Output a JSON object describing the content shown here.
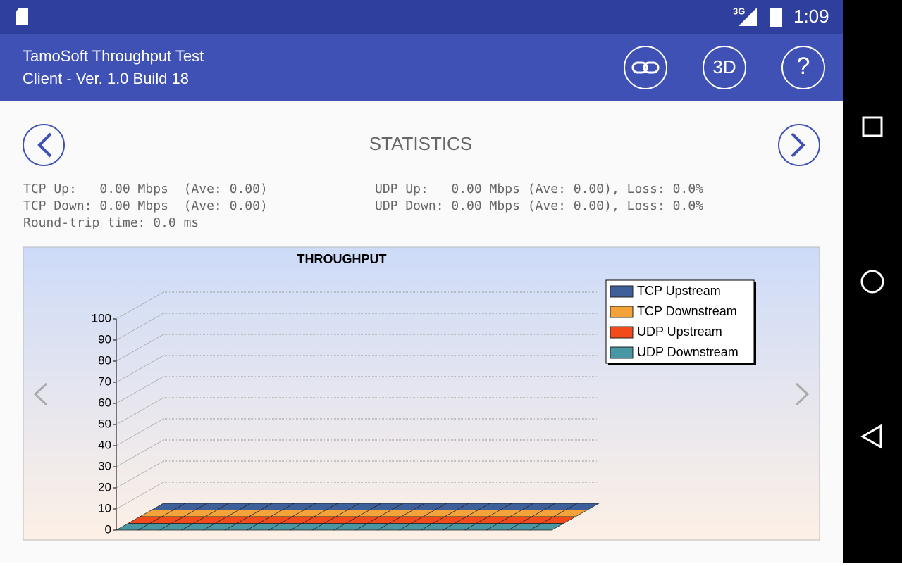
{
  "status_bar": {
    "network": "3G",
    "time": "1:09"
  },
  "app_bar": {
    "title": "TamoSoft Throughput Test",
    "subtitle": "Client - Ver. 1.0 Build 18",
    "buttons": [
      "3D",
      "?"
    ]
  },
  "page_title": "STATISTICS",
  "stats": {
    "left": [
      "TCP Up:   0.00 Mbps  (Ave: 0.00)",
      "TCP Down: 0.00 Mbps  (Ave: 0.00)",
      "Round-trip time: 0.0 ms"
    ],
    "right": [
      "UDP Up:   0.00 Mbps (Ave: 0.00), Loss: 0.0%",
      "UDP Down: 0.00 Mbps (Ave: 0.00), Loss: 0.0%"
    ]
  },
  "chart_data": {
    "type": "bar3d",
    "title": "THROUGHPUT",
    "categories": [
      null,
      null,
      null,
      null,
      null,
      null,
      null,
      null,
      null,
      null,
      null,
      null,
      null,
      null,
      null,
      null,
      null,
      null,
      null,
      null
    ],
    "series": [
      {
        "name": "TCP Upstream",
        "color": "#3d5f9a",
        "values": [
          0,
          0,
          0,
          0,
          0,
          0,
          0,
          0,
          0,
          0,
          0,
          0,
          0,
          0,
          0,
          0,
          0,
          0,
          0,
          0
        ]
      },
      {
        "name": "TCP Downstream",
        "color": "#f4a23a",
        "values": [
          0,
          0,
          0,
          0,
          0,
          0,
          0,
          0,
          0,
          0,
          0,
          0,
          0,
          0,
          0,
          0,
          0,
          0,
          0,
          0
        ]
      },
      {
        "name": "UDP Upstream",
        "color": "#f24a1a",
        "values": [
          0,
          0,
          0,
          0,
          0,
          0,
          0,
          0,
          0,
          0,
          0,
          0,
          0,
          0,
          0,
          0,
          0,
          0,
          0,
          0
        ]
      },
      {
        "name": "UDP Downstream",
        "color": "#4a97a4",
        "values": [
          0,
          0,
          0,
          0,
          0,
          0,
          0,
          0,
          0,
          0,
          0,
          0,
          0,
          0,
          0,
          0,
          0,
          0,
          0,
          0
        ]
      }
    ],
    "ylim": [
      0,
      100
    ],
    "yticks": [
      0,
      10,
      20,
      30,
      40,
      50,
      60,
      70,
      80,
      90,
      100
    ],
    "grid": true,
    "legend": "top-right"
  }
}
